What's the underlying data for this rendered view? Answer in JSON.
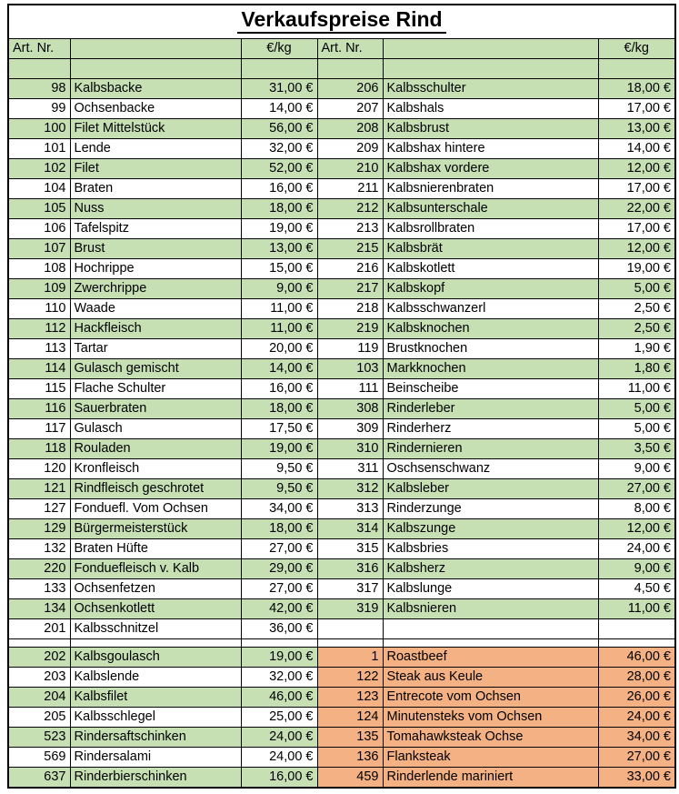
{
  "title": "Verkaufspreise Rind",
  "columns": {
    "art_nr": "Art. Nr.",
    "price_per_kg": "€/kg"
  },
  "colors": {
    "green": "#C6E0B4",
    "orange": "#F4B183",
    "white": "#FFFFFF",
    "grid": "#000000"
  },
  "rows": [
    {
      "type": "empty",
      "left_bg": "green",
      "right_bg": "green"
    },
    {
      "type": "data",
      "left": {
        "nr": "98",
        "name": "Kalbsbacke",
        "price": "31,00 €",
        "bg": "green"
      },
      "right": {
        "nr": "206",
        "name": "Kalbsschulter",
        "price": "18,00 €",
        "bg": "green"
      }
    },
    {
      "type": "data",
      "left": {
        "nr": "99",
        "name": "Ochsenbacke",
        "price": "14,00 €",
        "bg": "white"
      },
      "right": {
        "nr": "207",
        "name": "Kalbshals",
        "price": "17,00 €",
        "bg": "white"
      }
    },
    {
      "type": "data",
      "left": {
        "nr": "100",
        "name": "Filet Mittelstück",
        "price": "56,00 €",
        "bg": "green"
      },
      "right": {
        "nr": "208",
        "name": "Kalbsbrust",
        "price": "13,00 €",
        "bg": "green"
      }
    },
    {
      "type": "data",
      "left": {
        "nr": "101",
        "name": "Lende",
        "price": "32,00 €",
        "bg": "white"
      },
      "right": {
        "nr": "209",
        "name": "Kalbshax hintere",
        "price": "14,00 €",
        "bg": "white"
      }
    },
    {
      "type": "data",
      "left": {
        "nr": "102",
        "name": "Filet",
        "price": "52,00 €",
        "bg": "green"
      },
      "right": {
        "nr": "210",
        "name": "Kalbshax vordere",
        "price": "12,00 €",
        "bg": "green"
      }
    },
    {
      "type": "data",
      "left": {
        "nr": "104",
        "name": "Braten",
        "price": "16,00 €",
        "bg": "white"
      },
      "right": {
        "nr": "211",
        "name": "Kalbsnierenbraten",
        "price": "17,00 €",
        "bg": "white"
      }
    },
    {
      "type": "data",
      "left": {
        "nr": "105",
        "name": "Nuss",
        "price": "18,00 €",
        "bg": "green"
      },
      "right": {
        "nr": "212",
        "name": "Kalbsunterschale",
        "price": "22,00 €",
        "bg": "green"
      }
    },
    {
      "type": "data",
      "left": {
        "nr": "106",
        "name": "Tafelspitz",
        "price": "19,00 €",
        "bg": "white"
      },
      "right": {
        "nr": "213",
        "name": "Kalbsrollbraten",
        "price": "17,00 €",
        "bg": "white"
      }
    },
    {
      "type": "data",
      "left": {
        "nr": "107",
        "name": "Brust",
        "price": "13,00 €",
        "bg": "green"
      },
      "right": {
        "nr": "215",
        "name": "Kalbsbrät",
        "price": "12,00 €",
        "bg": "green"
      }
    },
    {
      "type": "data",
      "left": {
        "nr": "108",
        "name": "Hochrippe",
        "price": "15,00 €",
        "bg": "white"
      },
      "right": {
        "nr": "216",
        "name": "Kalbskotlett",
        "price": "19,00 €",
        "bg": "white"
      }
    },
    {
      "type": "data",
      "left": {
        "nr": "109",
        "name": "Zwerchrippe",
        "price": "9,00 €",
        "bg": "green"
      },
      "right": {
        "nr": "217",
        "name": "Kalbskopf",
        "price": "5,00 €",
        "bg": "green"
      }
    },
    {
      "type": "data",
      "left": {
        "nr": "110",
        "name": "Waade",
        "price": "11,00 €",
        "bg": "white"
      },
      "right": {
        "nr": "218",
        "name": "Kalbsschwanzerl",
        "price": "2,50 €",
        "bg": "white"
      }
    },
    {
      "type": "data",
      "left": {
        "nr": "112",
        "name": "Hackfleisch",
        "price": "11,00 €",
        "bg": "green"
      },
      "right": {
        "nr": "219",
        "name": "Kalbsknochen",
        "price": "2,50 €",
        "bg": "green"
      }
    },
    {
      "type": "data",
      "left": {
        "nr": "113",
        "name": "Tartar",
        "price": "20,00 €",
        "bg": "white"
      },
      "right": {
        "nr": "119",
        "name": "Brustknochen",
        "price": "1,90 €",
        "bg": "white"
      }
    },
    {
      "type": "data",
      "left": {
        "nr": "114",
        "name": "Gulasch gemischt",
        "price": "14,00 €",
        "bg": "green"
      },
      "right": {
        "nr": "103",
        "name": "Markknochen",
        "price": "1,80 €",
        "bg": "green"
      }
    },
    {
      "type": "data",
      "left": {
        "nr": "115",
        "name": "Flache Schulter",
        "price": "16,00 €",
        "bg": "white"
      },
      "right": {
        "nr": "111",
        "name": "Beinscheibe",
        "price": "11,00 €",
        "bg": "white"
      }
    },
    {
      "type": "data",
      "left": {
        "nr": "116",
        "name": "Sauerbraten",
        "price": "18,00 €",
        "bg": "green"
      },
      "right": {
        "nr": "308",
        "name": "Rinderleber",
        "price": "5,00 €",
        "bg": "green"
      }
    },
    {
      "type": "data",
      "left": {
        "nr": "117",
        "name": "Gulasch",
        "price": "17,50 €",
        "bg": "white"
      },
      "right": {
        "nr": "309",
        "name": "Rinderherz",
        "price": "5,00 €",
        "bg": "white"
      }
    },
    {
      "type": "data",
      "left": {
        "nr": "118",
        "name": "Rouladen",
        "price": "19,00 €",
        "bg": "green"
      },
      "right": {
        "nr": "310",
        "name": "Rindernieren",
        "price": "3,50 €",
        "bg": "green"
      }
    },
    {
      "type": "data",
      "left": {
        "nr": "120",
        "name": "Kronfleisch",
        "price": "9,50 €",
        "bg": "white"
      },
      "right": {
        "nr": "311",
        "name": "Oschsenschwanz",
        "price": "9,00 €",
        "bg": "white"
      }
    },
    {
      "type": "data",
      "left": {
        "nr": "121",
        "name": "Rindfleisch geschrotet",
        "price": "9,50 €",
        "bg": "green"
      },
      "right": {
        "nr": "312",
        "name": "Kalbsleber",
        "price": "27,00 €",
        "bg": "green"
      }
    },
    {
      "type": "data",
      "left": {
        "nr": "127",
        "name": "Fonduefl. Vom Ochsen",
        "price": "34,00 €",
        "bg": "white"
      },
      "right": {
        "nr": "313",
        "name": "Rinderzunge",
        "price": "8,00 €",
        "bg": "white"
      }
    },
    {
      "type": "data",
      "left": {
        "nr": "129",
        "name": "Bürgermeisterstück",
        "price": "18,00 €",
        "bg": "green"
      },
      "right": {
        "nr": "314",
        "name": "Kalbszunge",
        "price": "12,00 €",
        "bg": "green"
      }
    },
    {
      "type": "data",
      "left": {
        "nr": "132",
        "name": "Braten Hüfte",
        "price": "27,00 €",
        "bg": "white"
      },
      "right": {
        "nr": "315",
        "name": "Kalbsbries",
        "price": "24,00 €",
        "bg": "white"
      }
    },
    {
      "type": "data",
      "left": {
        "nr": "220",
        "name": "Fonduefleisch v. Kalb",
        "price": "29,00 €",
        "bg": "green"
      },
      "right": {
        "nr": "316",
        "name": "Kalbsherz",
        "price": "9,00 €",
        "bg": "green"
      }
    },
    {
      "type": "data",
      "left": {
        "nr": "133",
        "name": "Ochsenfetzen",
        "price": "27,00 €",
        "bg": "white"
      },
      "right": {
        "nr": "317",
        "name": "Kalbslunge",
        "price": "4,50 €",
        "bg": "white"
      }
    },
    {
      "type": "data",
      "left": {
        "nr": "134",
        "name": "Ochsenkotlett",
        "price": "42,00 €",
        "bg": "green"
      },
      "right": {
        "nr": "319",
        "name": "Kalbsnieren",
        "price": "11,00 €",
        "bg": "green"
      }
    },
    {
      "type": "data",
      "left": {
        "nr": "201",
        "name": "Kalbsschnitzel",
        "price": "36,00 €",
        "bg": "white"
      },
      "right": {
        "nr": "",
        "name": "",
        "price": "",
        "bg": "white"
      }
    },
    {
      "type": "spacer"
    },
    {
      "type": "data",
      "left": {
        "nr": "202",
        "name": "Kalbsgoulasch",
        "price": "19,00 €",
        "bg": "green"
      },
      "right": {
        "nr": "1",
        "name": "Roastbeef",
        "price": "46,00 €",
        "bg": "orange"
      }
    },
    {
      "type": "data",
      "left": {
        "nr": "203",
        "name": "Kalbslende",
        "price": "32,00 €",
        "bg": "white"
      },
      "right": {
        "nr": "122",
        "name": "Steak aus Keule",
        "price": "28,00 €",
        "bg": "orange"
      }
    },
    {
      "type": "data",
      "left": {
        "nr": "204",
        "name": "Kalbsfilet",
        "price": "46,00 €",
        "bg": "green"
      },
      "right": {
        "nr": "123",
        "name": "Entrecote vom Ochsen",
        "price": "26,00 €",
        "bg": "orange"
      }
    },
    {
      "type": "data",
      "left": {
        "nr": "205",
        "name": "Kalbsschlegel",
        "price": "25,00 €",
        "bg": "white"
      },
      "right": {
        "nr": "124",
        "name": "Minutensteks vom Ochsen",
        "price": "24,00 €",
        "bg": "orange"
      }
    },
    {
      "type": "data",
      "left": {
        "nr": "523",
        "name": "Rindersaftschinken",
        "price": "24,00 €",
        "bg": "green"
      },
      "right": {
        "nr": "135",
        "name": "Tomahawksteak Ochse",
        "price": "34,00 €",
        "bg": "orange"
      }
    },
    {
      "type": "data",
      "left": {
        "nr": "569",
        "name": "Rindersalami",
        "price": "24,00 €",
        "bg": "white"
      },
      "right": {
        "nr": "136",
        "name": "Flanksteak",
        "price": "27,00 €",
        "bg": "orange"
      }
    },
    {
      "type": "data",
      "left": {
        "nr": "637",
        "name": "Rinderbierschinken",
        "price": "16,00 €",
        "bg": "green"
      },
      "right": {
        "nr": "459",
        "name": "Rinderlende mariniert",
        "price": "33,00 €",
        "bg": "orange"
      }
    }
  ]
}
